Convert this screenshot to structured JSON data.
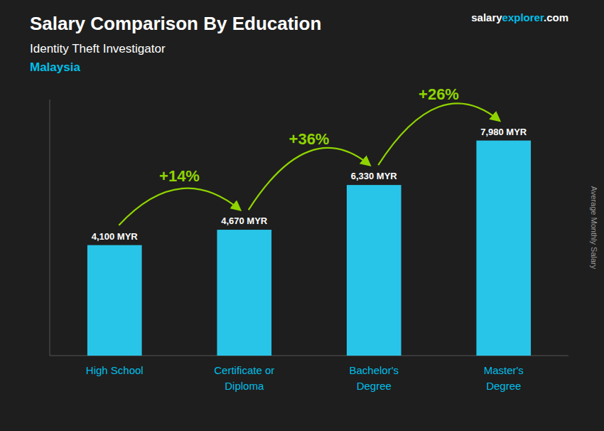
{
  "chart_data": {
    "type": "bar",
    "title": "Salary Comparison By Education",
    "subtitle": "Identity Theft Investigator",
    "country": "Malaysia",
    "source": [
      "salary",
      "explorer",
      ".com"
    ],
    "categories": [
      "High School",
      "Certificate or\nDiploma",
      "Bachelor's\nDegree",
      "Master's\nDegree"
    ],
    "values": [
      4100,
      4670,
      6330,
      7980
    ],
    "value_labels": [
      "4,100 MYR",
      "4,670 MYR",
      "6,330 MYR",
      "7,980 MYR"
    ],
    "annotations": [
      "+14%",
      "+36%",
      "+26%"
    ],
    "y_label": "Average Monthly Salary",
    "color": "#29c5e8",
    "ylim": [
      0,
      9500
    ],
    "tick_labels": "x",
    "data_labels": true,
    "grid": false
  }
}
